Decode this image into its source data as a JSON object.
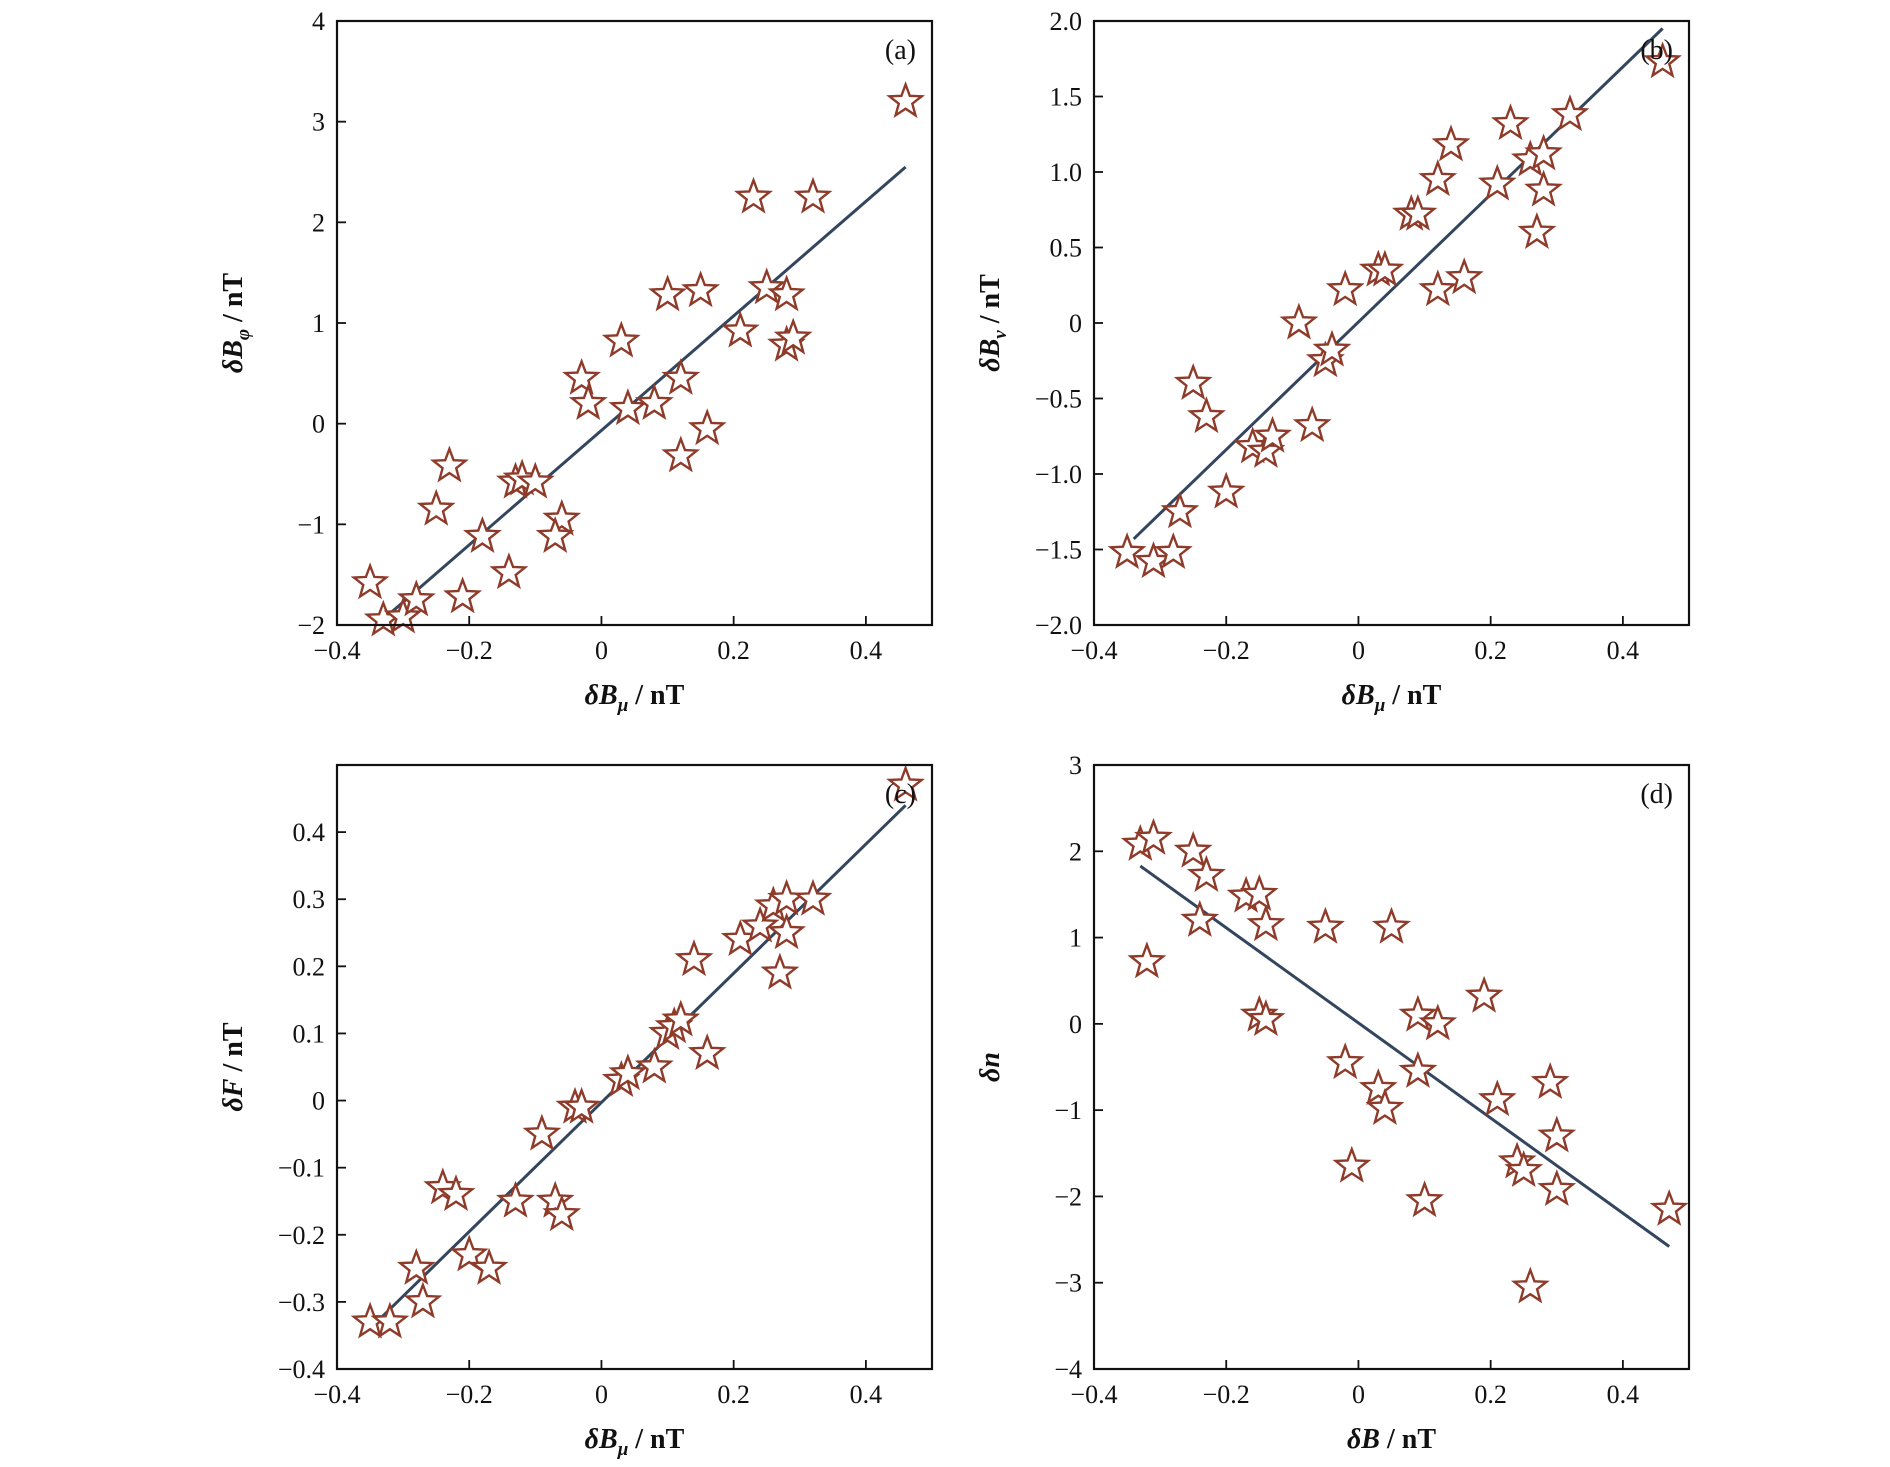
{
  "chart_data": [
    {
      "type": "scatter",
      "panel_label": "(a)",
      "xlabel": "δB_μ / nT",
      "ylabel": "δB_φ / nT",
      "xlim": [
        -0.4,
        0.5
      ],
      "ylim": [
        -2,
        4
      ],
      "xticks": [
        "−0.4",
        "−0.2",
        "0",
        "0.2",
        "0.4"
      ],
      "xtick_values": [
        -0.4,
        -0.2,
        0,
        0.2,
        0.4
      ],
      "yticks": [
        "−2",
        "−1",
        "0",
        "1",
        "2",
        "3",
        "4"
      ],
      "ytick_values": [
        -2,
        -1,
        0,
        1,
        2,
        3,
        4
      ],
      "fit_line": {
        "x": [
          -0.34,
          0.46
        ],
        "y": [
          -2.0,
          2.55
        ]
      },
      "points": {
        "x": [
          -0.35,
          -0.33,
          -0.3,
          -0.28,
          -0.21,
          -0.25,
          -0.23,
          -0.18,
          -0.13,
          -0.12,
          -0.1,
          -0.14,
          -0.06,
          -0.07,
          -0.03,
          -0.02,
          0.03,
          0.04,
          0.08,
          0.1,
          0.12,
          0.12,
          0.15,
          0.16,
          0.21,
          0.23,
          0.25,
          0.28,
          0.28,
          0.29,
          0.32,
          0.46
        ],
        "y": [
          -1.58,
          -1.95,
          -1.92,
          -1.75,
          -1.72,
          -0.85,
          -0.42,
          -1.12,
          -0.58,
          -0.55,
          -0.58,
          -1.48,
          -0.95,
          -1.12,
          0.45,
          0.2,
          0.82,
          0.15,
          0.2,
          1.28,
          0.45,
          -0.32,
          1.32,
          -0.05,
          0.92,
          2.25,
          1.35,
          1.28,
          0.78,
          0.85,
          2.25,
          3.2
        ]
      }
    },
    {
      "type": "scatter",
      "panel_label": "(b)",
      "xlabel": "δB_μ / nT",
      "ylabel": "δB_ν / nT",
      "xlim": [
        -0.4,
        0.5
      ],
      "ylim": [
        -2.0,
        2.0
      ],
      "xticks": [
        "−0.4",
        "−0.2",
        "0",
        "0.2",
        "0.4"
      ],
      "xtick_values": [
        -0.4,
        -0.2,
        0,
        0.2,
        0.4
      ],
      "yticks": [
        "−2.0",
        "−1.5",
        "−1.0",
        "−0.5",
        "0",
        "0.5",
        "1.0",
        "1.5",
        "2.0"
      ],
      "ytick_values": [
        -2.0,
        -1.5,
        -1.0,
        -0.5,
        0,
        0.5,
        1.0,
        1.5,
        2.0
      ],
      "fit_line": {
        "x": [
          -0.34,
          0.46
        ],
        "y": [
          -1.43,
          1.95
        ]
      },
      "points": {
        "x": [
          -0.35,
          -0.31,
          -0.28,
          -0.27,
          -0.25,
          -0.23,
          -0.2,
          -0.16,
          -0.14,
          -0.13,
          -0.09,
          -0.07,
          -0.05,
          -0.04,
          -0.02,
          0.03,
          0.04,
          0.08,
          0.09,
          0.12,
          0.12,
          0.14,
          0.16,
          0.21,
          0.23,
          0.26,
          0.27,
          0.28,
          0.28,
          0.32,
          0.46
        ],
        "y": [
          -1.52,
          -1.58,
          -1.52,
          -1.25,
          -0.4,
          -0.62,
          -1.12,
          -0.82,
          -0.85,
          -0.75,
          0.0,
          -0.68,
          -0.25,
          -0.18,
          0.22,
          0.35,
          0.35,
          0.72,
          0.72,
          0.95,
          0.22,
          1.18,
          0.3,
          0.92,
          1.32,
          1.08,
          0.6,
          1.12,
          0.88,
          1.38,
          1.73
        ]
      }
    },
    {
      "type": "scatter",
      "panel_label": "(c)",
      "xlabel": "δB_μ / nT",
      "ylabel": "δF / nT",
      "xlim": [
        -0.4,
        0.5
      ],
      "ylim": [
        -0.4,
        0.5
      ],
      "xticks": [
        "−0.4",
        "−0.2",
        "0",
        "0.2",
        "0.4"
      ],
      "xtick_values": [
        -0.4,
        -0.2,
        0,
        0.2,
        0.4
      ],
      "yticks": [
        "−0.4",
        "−0.3",
        "−0.2",
        "−0.1",
        "0",
        "0.1",
        "0.2",
        "0.3",
        "0.4"
      ],
      "ytick_values": [
        -0.4,
        -0.3,
        -0.2,
        -0.1,
        0,
        0.1,
        0.2,
        0.3,
        0.4
      ],
      "fit_line": {
        "x": [
          -0.34,
          0.46
        ],
        "y": [
          -0.33,
          0.44
        ]
      },
      "points": {
        "x": [
          -0.35,
          -0.32,
          -0.28,
          -0.27,
          -0.24,
          -0.22,
          -0.2,
          -0.17,
          -0.13,
          -0.09,
          -0.07,
          -0.06,
          -0.04,
          -0.03,
          0.03,
          0.04,
          0.08,
          0.1,
          0.11,
          0.12,
          0.14,
          0.16,
          0.21,
          0.24,
          0.26,
          0.27,
          0.28,
          0.28,
          0.32,
          0.46
        ],
        "y": [
          -0.33,
          -0.33,
          -0.25,
          -0.3,
          -0.13,
          -0.14,
          -0.23,
          -0.25,
          -0.15,
          -0.05,
          -0.15,
          -0.17,
          -0.01,
          -0.01,
          0.03,
          0.04,
          0.05,
          0.1,
          0.11,
          0.12,
          0.21,
          0.07,
          0.24,
          0.26,
          0.29,
          0.19,
          0.25,
          0.3,
          0.3,
          0.47
        ]
      }
    },
    {
      "type": "scatter",
      "panel_label": "(d)",
      "xlabel": "δB / nT",
      "ylabel": "δn",
      "xlim": [
        -0.4,
        0.5
      ],
      "ylim": [
        -4,
        3
      ],
      "xticks": [
        "−0.4",
        "−0.2",
        "0",
        "0.2",
        "0.4"
      ],
      "xtick_values": [
        -0.4,
        -0.2,
        0,
        0.2,
        0.4
      ],
      "yticks": [
        "−4",
        "−3",
        "−2",
        "−1",
        "0",
        "1",
        "2",
        "3"
      ],
      "ytick_values": [
        -4,
        -3,
        -2,
        -1,
        0,
        1,
        2,
        3
      ],
      "fit_line": {
        "x": [
          -0.33,
          0.47
        ],
        "y": [
          1.83,
          -2.58
        ]
      },
      "points": {
        "x": [
          -0.33,
          -0.32,
          -0.31,
          -0.25,
          -0.24,
          -0.23,
          -0.17,
          -0.15,
          -0.14,
          -0.15,
          -0.14,
          -0.05,
          -0.02,
          -0.01,
          0.03,
          0.04,
          0.05,
          0.09,
          0.09,
          0.1,
          0.12,
          0.19,
          0.21,
          0.24,
          0.25,
          0.26,
          0.29,
          0.3,
          0.3,
          0.47
        ],
        "y": [
          2.08,
          0.72,
          2.15,
          2.0,
          1.2,
          1.72,
          1.48,
          1.5,
          1.15,
          0.1,
          0.05,
          1.12,
          -0.45,
          -1.65,
          -0.75,
          -0.98,
          1.12,
          0.1,
          -0.55,
          -2.05,
          0.0,
          0.32,
          -0.88,
          -1.6,
          -1.7,
          -3.05,
          -0.68,
          -1.3,
          -1.92,
          -2.15
        ]
      }
    }
  ],
  "colors": {
    "marker_edge": "#8e3b2a",
    "marker_fill": "#ffffff",
    "fit_line": "#34465e",
    "axes": "#111111"
  }
}
